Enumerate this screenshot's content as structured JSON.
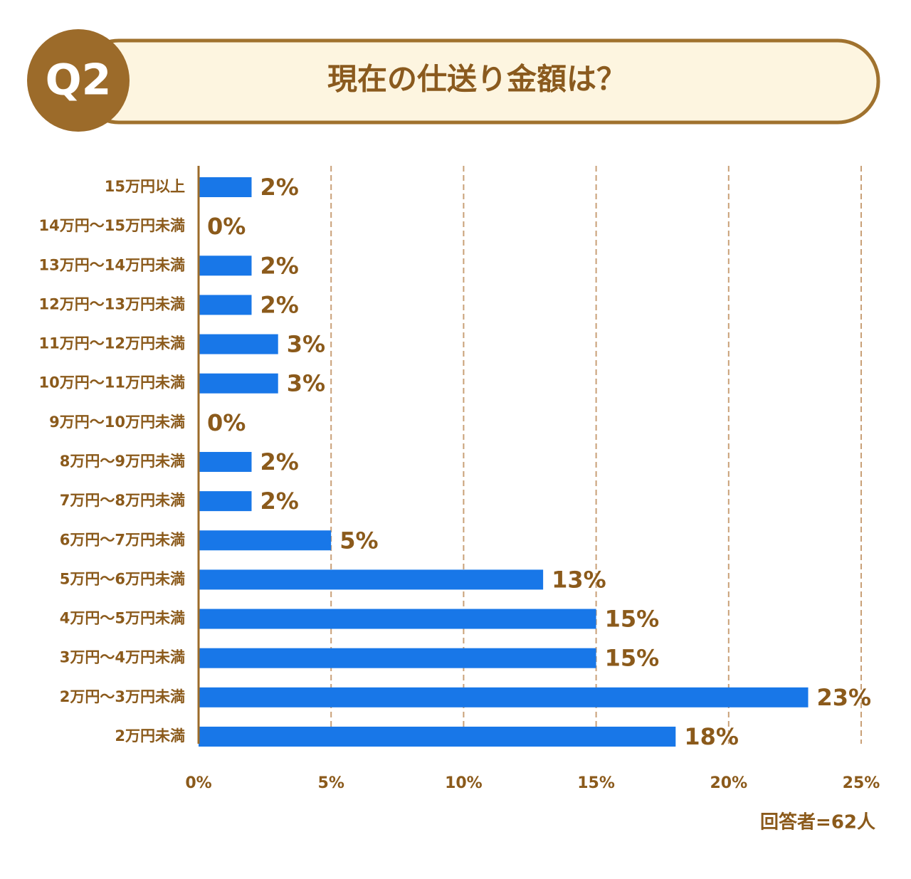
{
  "chart_data": {
    "type": "hbar",
    "question_number": "Q2",
    "title": "現在の仕送り金額は？",
    "note": "回答者=62人",
    "categories": [
      "15万円以上",
      "14万円～15万円未満",
      "13万円～14万円未満",
      "12万円～13万円未満",
      "11万円～12万円未満",
      "10万円～11万円未満",
      "9万円～10万円未満",
      "8万円～9万円未満",
      "7万円～8万円未満",
      "6万円～7万円未満",
      "5万円～6万円未満",
      "4万円～5万円未満",
      "3万円～4万円未満",
      "2万円～3万円未満",
      "2万円未満"
    ],
    "values": [
      2,
      0,
      2,
      2,
      3,
      3,
      0,
      2,
      2,
      5,
      13,
      15,
      15,
      23,
      18
    ],
    "value_labels": [
      "2%",
      "0%",
      "2%",
      "2%",
      "3%",
      "3%",
      "0%",
      "2%",
      "2%",
      "5%",
      "13%",
      "15%",
      "15%",
      "23%",
      "18%"
    ],
    "color": "#1877e8",
    "xlim": [
      0,
      25
    ],
    "xticks": [
      {
        "value": 0,
        "label": "0%"
      },
      {
        "value": 5,
        "label": "5%"
      },
      {
        "value": 10,
        "label": "10%"
      },
      {
        "value": 15,
        "label": "15%"
      },
      {
        "value": 20,
        "label": "20%"
      },
      {
        "value": 25,
        "label": "25%"
      }
    ],
    "grid": true
  }
}
